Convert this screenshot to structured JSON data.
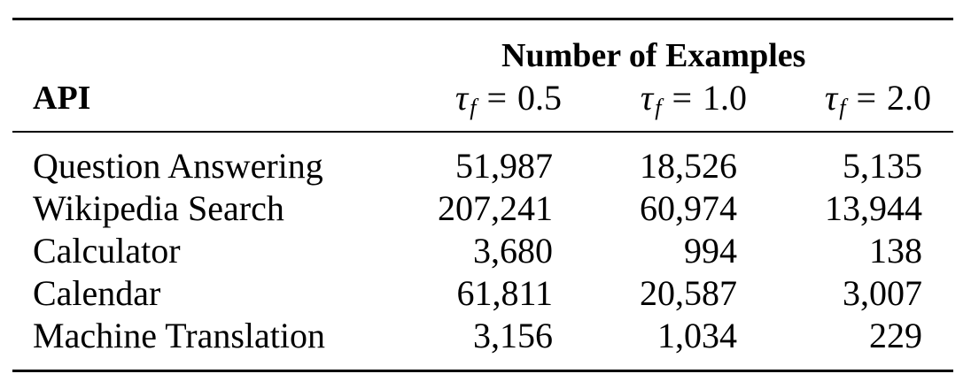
{
  "table": {
    "group_header": "Number of Examples",
    "api_header": "API",
    "columns": [
      {
        "symbol": "τ",
        "subscript": "f",
        "operator": "=",
        "value": "0.5"
      },
      {
        "symbol": "τ",
        "subscript": "f",
        "operator": "=",
        "value": "1.0"
      },
      {
        "symbol": "τ",
        "subscript": "f",
        "operator": "=",
        "value": "2.0"
      }
    ],
    "rows": [
      {
        "api": "Question Answering",
        "values": [
          "51,987",
          "18,526",
          "5,135"
        ]
      },
      {
        "api": "Wikipedia Search",
        "values": [
          "207,241",
          "60,974",
          "13,944"
        ]
      },
      {
        "api": "Calculator",
        "values": [
          "3,680",
          "994",
          "138"
        ]
      },
      {
        "api": "Calendar",
        "values": [
          "61,811",
          "20,587",
          "3,007"
        ]
      },
      {
        "api": "Machine Translation",
        "values": [
          "3,156",
          "1,034",
          "229"
        ]
      }
    ]
  }
}
